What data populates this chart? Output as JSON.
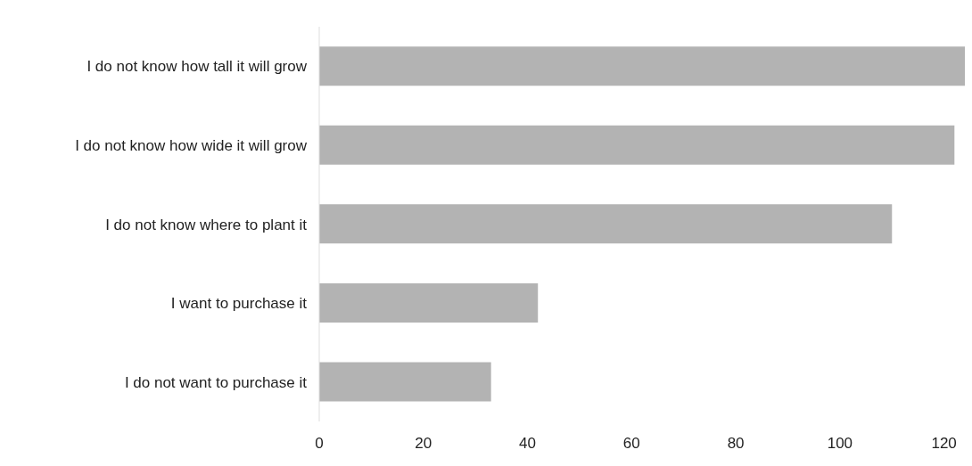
{
  "chart_data": {
    "type": "bar",
    "orientation": "horizontal",
    "categories": [
      "I do not know how tall it will grow",
      "I do not know how wide it will grow",
      "I do not know where to plant it",
      "I want to purchase it",
      "I do not want to purchase it"
    ],
    "values": [
      124,
      122,
      110,
      42,
      33
    ],
    "color": "#b3b3b3",
    "xlim": [
      0,
      124
    ],
    "xticks": [
      0,
      20,
      40,
      60,
      80,
      100,
      120
    ],
    "grid": false
  }
}
